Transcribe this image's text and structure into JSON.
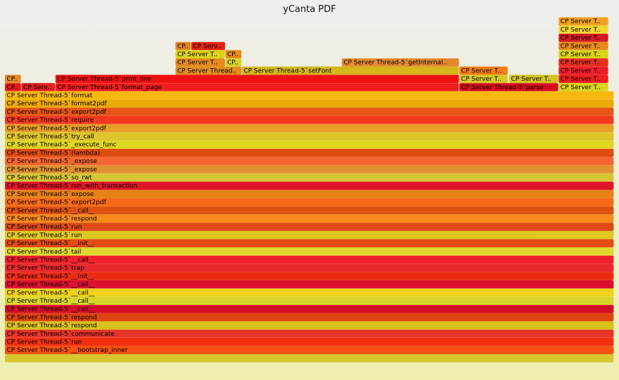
{
  "title": "yCanta PDF",
  "chart_data": {
    "type": "flamegraph",
    "title": "yCanta PDF",
    "root_total": 1000,
    "frames": [
      {
        "depth": 0,
        "start": 0,
        "width": 1000,
        "label": "",
        "color": "#d6c72e"
      },
      {
        "depth": 1,
        "start": 0,
        "width": 1000,
        "label": "CP Server Thread-5`__bootstrap_inner",
        "color": "#f55014"
      },
      {
        "depth": 2,
        "start": 0,
        "width": 1000,
        "label": "CP Server Thread-5`run",
        "color": "#f23010"
      },
      {
        "depth": 3,
        "start": 0,
        "width": 1000,
        "label": "CP Server Thread-5`communicate",
        "color": "#e63328"
      },
      {
        "depth": 4,
        "start": 0,
        "width": 1000,
        "label": "CP Server Thread-5`respond",
        "color": "#d8c21c"
      },
      {
        "depth": 5,
        "start": 0,
        "width": 1000,
        "label": "CP Server Thread-5`respond",
        "color": "#de4410"
      },
      {
        "depth": 6,
        "start": 0,
        "width": 1000,
        "label": "CP Server Thread-5`__call__",
        "color": "#d40e26"
      },
      {
        "depth": 7,
        "start": 0,
        "width": 1000,
        "label": "CP Server Thread-5`__call__",
        "color": "#d9d42b"
      },
      {
        "depth": 8,
        "start": 0,
        "width": 1000,
        "label": "CP Server Thread-5`__call__",
        "color": "#f0d21c"
      },
      {
        "depth": 9,
        "start": 0,
        "width": 1000,
        "label": "CP Server Thread-5`__call__",
        "color": "#dc1030"
      },
      {
        "depth": 10,
        "start": 0,
        "width": 1000,
        "label": "CP Server Thread-5`__init__",
        "color": "#ec2a14"
      },
      {
        "depth": 11,
        "start": 0,
        "width": 1000,
        "label": "CP Server Thread-5`trap",
        "color": "#e8282c"
      },
      {
        "depth": 12,
        "start": 0,
        "width": 1000,
        "label": "CP Server Thread-5`__call__",
        "color": "#f0202c"
      },
      {
        "depth": 13,
        "start": 0,
        "width": 1000,
        "label": "CP Server Thread-5`tail",
        "color": "#e0d82a"
      },
      {
        "depth": 14,
        "start": 0,
        "width": 1000,
        "label": "CP Server Thread-5`__init__",
        "color": "#e44c14"
      },
      {
        "depth": 15,
        "start": 0,
        "width": 1000,
        "label": "CP Server Thread-5`run",
        "color": "#dec822"
      },
      {
        "depth": 16,
        "start": 0,
        "width": 1000,
        "label": "CP Server Thread-5`run",
        "color": "#dc4a18"
      },
      {
        "depth": 17,
        "start": 0,
        "width": 1000,
        "label": "CP Server Thread-5`respond",
        "color": "#f8891c"
      },
      {
        "depth": 18,
        "start": 0,
        "width": 1000,
        "label": "CP Server Thread-5`__call__",
        "color": "#de5210"
      },
      {
        "depth": 19,
        "start": 0,
        "width": 1000,
        "label": "CP Server Thread-5`export2pdf",
        "color": "#f66a18"
      },
      {
        "depth": 20,
        "start": 0,
        "width": 1000,
        "label": "CP Server Thread-5`expose",
        "color": "#e58216"
      },
      {
        "depth": 21,
        "start": 0,
        "width": 1000,
        "label": "CP Server Thread-5`run_with_transaction",
        "color": "#e0152a"
      },
      {
        "depth": 22,
        "start": 0,
        "width": 1000,
        "label": "CP Server Thread-5`so_rwt",
        "color": "#d4c634"
      },
      {
        "depth": 23,
        "start": 0,
        "width": 1000,
        "label": "CP Server Thread-5`_expose",
        "color": "#e09032"
      },
      {
        "depth": 24,
        "start": 0,
        "width": 1000,
        "label": "CP Server Thread-5`_expose",
        "color": "#f66632"
      },
      {
        "depth": 25,
        "start": 0,
        "width": 1000,
        "label": "CP Server Thread-5`(lambda)",
        "color": "#de4c12"
      },
      {
        "depth": 26,
        "start": 0,
        "width": 1000,
        "label": "CP Server Thread-5`_execute_func",
        "color": "#dfd622"
      },
      {
        "depth": 27,
        "start": 0,
        "width": 1000,
        "label": "CP Server Thread-5`try_call",
        "color": "#dcc42a"
      },
      {
        "depth": 28,
        "start": 0,
        "width": 1000,
        "label": "CP Server Thread-5`export2pdf",
        "color": "#e8a028"
      },
      {
        "depth": 29,
        "start": 0,
        "width": 1000,
        "label": "CP Server Thread-5`require",
        "color": "#f23a20"
      },
      {
        "depth": 30,
        "start": 0,
        "width": 1000,
        "label": "CP Server Thread-5`export2pdf",
        "color": "#e65616"
      },
      {
        "depth": 31,
        "start": 0,
        "width": 1000,
        "label": "CP Server Thread-5`format2pdf",
        "color": "#ecaa0a"
      },
      {
        "depth": 32,
        "start": 0,
        "width": 1000,
        "label": "CP Server Thread-5`format",
        "color": "#f8b80e"
      },
      {
        "depth": 33,
        "start": 0,
        "width": 27,
        "label": "CP..",
        "color": "#ea1818"
      },
      {
        "depth": 33,
        "start": 27,
        "width": 56,
        "label": "CP Serv..",
        "color": "#e22020"
      },
      {
        "depth": 33,
        "start": 83,
        "width": 663,
        "label": "CP Server Thread-5`format_page",
        "color": "#f01e1e"
      },
      {
        "depth": 33,
        "start": 746,
        "width": 163,
        "label": "CP Server Thread-5`parse",
        "color": "#d60c1c"
      },
      {
        "depth": 33,
        "start": 909,
        "width": 82,
        "label": "CP Server T..",
        "color": "#d8d41c"
      },
      {
        "depth": 34,
        "start": 0,
        "width": 27,
        "label": "CP..",
        "color": "#e48a2a"
      },
      {
        "depth": 34,
        "start": 83,
        "width": 663,
        "label": "CP Server Thread-5`print_line",
        "color": "#f01212"
      },
      {
        "depth": 34,
        "start": 746,
        "width": 80,
        "label": "CP Server T..",
        "color": "#d8c82a"
      },
      {
        "depth": 34,
        "start": 828,
        "width": 81,
        "label": "CP Server T..",
        "color": "#d4c422"
      },
      {
        "depth": 34,
        "start": 909,
        "width": 82,
        "label": "CP Server T..",
        "color": "#f01e1e"
      },
      {
        "depth": 35,
        "start": 280,
        "width": 109,
        "label": "CP Server Thread..",
        "color": "#e08e1e"
      },
      {
        "depth": 35,
        "start": 389,
        "width": 357,
        "label": "CP Server Thread-5`setFont",
        "color": "#d4b81a"
      },
      {
        "depth": 35,
        "start": 746,
        "width": 80,
        "label": "CP Server T..",
        "color": "#f57e0e"
      },
      {
        "depth": 35,
        "start": 909,
        "width": 82,
        "label": "CP Server T..",
        "color": "#f01e2c"
      },
      {
        "depth": 36,
        "start": 280,
        "width": 82,
        "label": "CP Server T..",
        "color": "#e68a1e"
      },
      {
        "depth": 36,
        "start": 362,
        "width": 27,
        "label": "CP..",
        "color": "#d8d42a"
      },
      {
        "depth": 36,
        "start": 553,
        "width": 193,
        "label": "CP Server Thread-5`getInternal..",
        "color": "#e4882e"
      },
      {
        "depth": 36,
        "start": 909,
        "width": 82,
        "label": "CP Server T..",
        "color": "#e83020"
      },
      {
        "depth": 37,
        "start": 280,
        "width": 82,
        "label": "CP Server T..",
        "color": "#dcd41a"
      },
      {
        "depth": 37,
        "start": 362,
        "width": 27,
        "label": "CP..",
        "color": "#ea8a14"
      },
      {
        "depth": 37,
        "start": 909,
        "width": 82,
        "label": "CP Server T..",
        "color": "#d8d41a"
      },
      {
        "depth": 38,
        "start": 280,
        "width": 26,
        "label": "CP..",
        "color": "#e2881c"
      },
      {
        "depth": 38,
        "start": 306,
        "width": 56,
        "label": "CP Serv..",
        "color": "#e22414"
      },
      {
        "depth": 38,
        "start": 909,
        "width": 82,
        "label": "CP Server T..",
        "color": "#e88a1a"
      },
      {
        "depth": 39,
        "start": 909,
        "width": 82,
        "label": "CP Server T..",
        "color": "#d41a24"
      },
      {
        "depth": 40,
        "start": 909,
        "width": 82,
        "label": "CP Server T..",
        "color": "#f0d630"
      },
      {
        "depth": 41,
        "start": 909,
        "width": 82,
        "label": "CP Server T..",
        "color": "#f2a024"
      }
    ]
  }
}
